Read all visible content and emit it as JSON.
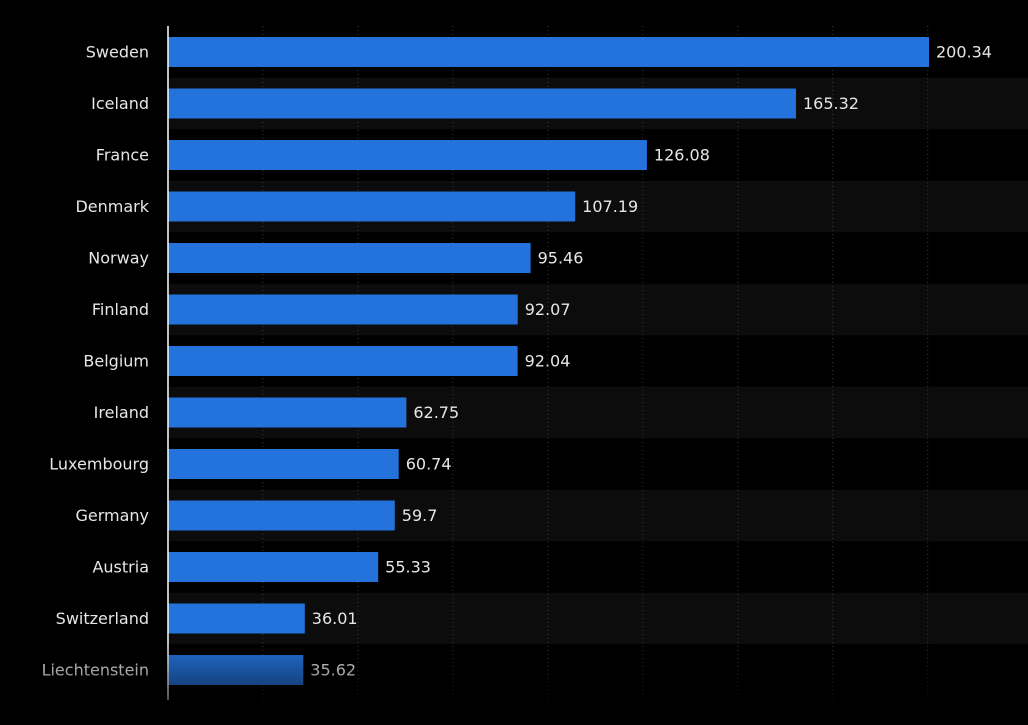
{
  "colors": {
    "background": "#000000",
    "bar": "#2472db",
    "band_alt": "#0c0c0c",
    "grid": "#3a3a3a",
    "axis": "#ffffff",
    "text": "#e6e6e6"
  },
  "chart_data": {
    "type": "bar",
    "orientation": "horizontal",
    "title": "",
    "xlabel": "",
    "ylabel": "",
    "grid": true,
    "xlim": [
      0,
      220
    ],
    "categories": [
      "Sweden",
      "Iceland",
      "France",
      "Denmark",
      "Norway",
      "Finland",
      "Belgium",
      "Ireland",
      "Luxembourg",
      "Germany",
      "Austria",
      "Switzerland",
      "Liechtenstein"
    ],
    "values": [
      200.34,
      165.32,
      126.08,
      107.19,
      95.46,
      92.07,
      92.04,
      62.75,
      60.74,
      59.7,
      55.33,
      36.01,
      35.62
    ],
    "value_labels": [
      "200.34",
      "165.32",
      "126.08",
      "107.19",
      "95.46",
      "92.07",
      "92.04",
      "62.75",
      "60.74",
      "59.7",
      "55.33",
      "36.01",
      "35.62"
    ]
  }
}
